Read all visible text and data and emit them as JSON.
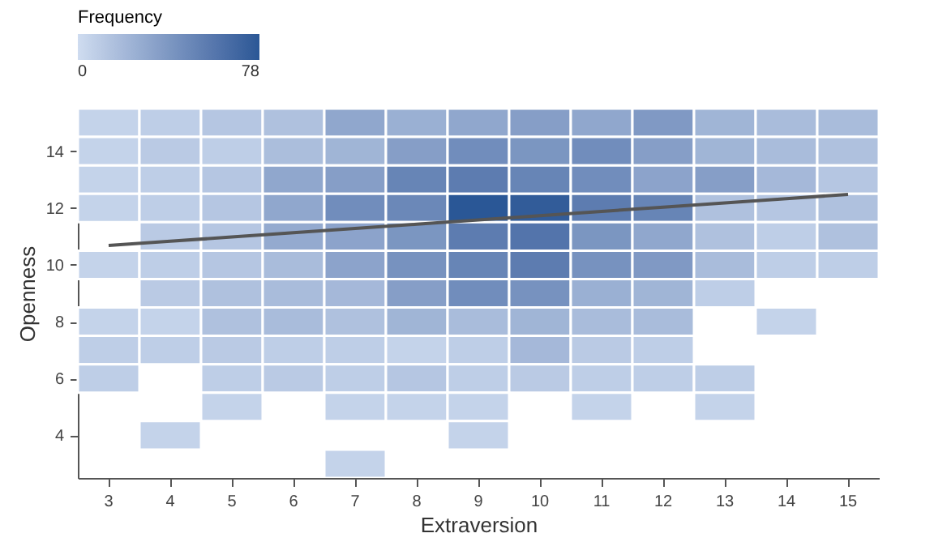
{
  "chart_data": {
    "type": "heatmap",
    "xlabel": "Extraversion",
    "ylabel": "Openness",
    "legend_title": "Frequency",
    "clim": [
      0,
      78
    ],
    "cticks": [
      0,
      78
    ],
    "grid": false,
    "categories": [
      "3",
      "4",
      "5",
      "6",
      "7",
      "8",
      "9",
      "10",
      "11",
      "12",
      "13",
      "14",
      "15"
    ],
    "cells": [
      [
        5,
        8,
        12,
        15,
        30,
        25,
        30,
        35,
        30,
        38,
        22,
        18,
        18
      ],
      [
        5,
        10,
        8,
        17,
        22,
        35,
        45,
        40,
        45,
        35,
        22,
        18,
        15
      ],
      [
        5,
        8,
        12,
        30,
        35,
        50,
        55,
        50,
        45,
        32,
        35,
        20,
        12
      ],
      [
        5,
        8,
        12,
        30,
        45,
        48,
        78,
        75,
        55,
        50,
        15,
        12,
        15
      ],
      [
        null,
        10,
        12,
        28,
        32,
        40,
        55,
        60,
        40,
        30,
        15,
        8,
        15
      ],
      [
        5,
        8,
        12,
        18,
        32,
        42,
        50,
        55,
        42,
        38,
        18,
        8,
        8
      ],
      [
        null,
        10,
        15,
        18,
        20,
        35,
        45,
        42,
        25,
        22,
        8,
        null,
        null
      ],
      [
        5,
        5,
        15,
        18,
        15,
        22,
        18,
        22,
        18,
        18,
        null,
        5,
        null
      ],
      [
        8,
        8,
        10,
        8,
        8,
        5,
        8,
        20,
        10,
        8,
        null,
        null,
        null
      ],
      [
        8,
        null,
        8,
        10,
        8,
        12,
        8,
        10,
        8,
        8,
        8,
        null,
        null
      ],
      [
        null,
        null,
        5,
        null,
        5,
        5,
        5,
        null,
        5,
        null,
        5,
        null,
        null
      ],
      [
        null,
        5,
        null,
        null,
        null,
        null,
        5,
        null,
        null,
        null,
        null,
        null,
        null
      ],
      [
        null,
        null,
        null,
        null,
        5,
        null,
        null,
        null,
        null,
        null,
        null,
        null,
        null
      ]
    ],
    "series": [
      {
        "type": "line",
        "color": "#555555",
        "values": [
          10.68,
          10.83,
          10.98,
          11.13,
          11.28,
          11.43,
          11.58,
          11.73,
          11.88,
          12.03,
          12.18,
          12.33,
          12.48
        ]
      }
    ],
    "ylim": [
      2.5,
      15.5
    ],
    "yticks": [
      4,
      6,
      8,
      10,
      12,
      14
    ]
  }
}
